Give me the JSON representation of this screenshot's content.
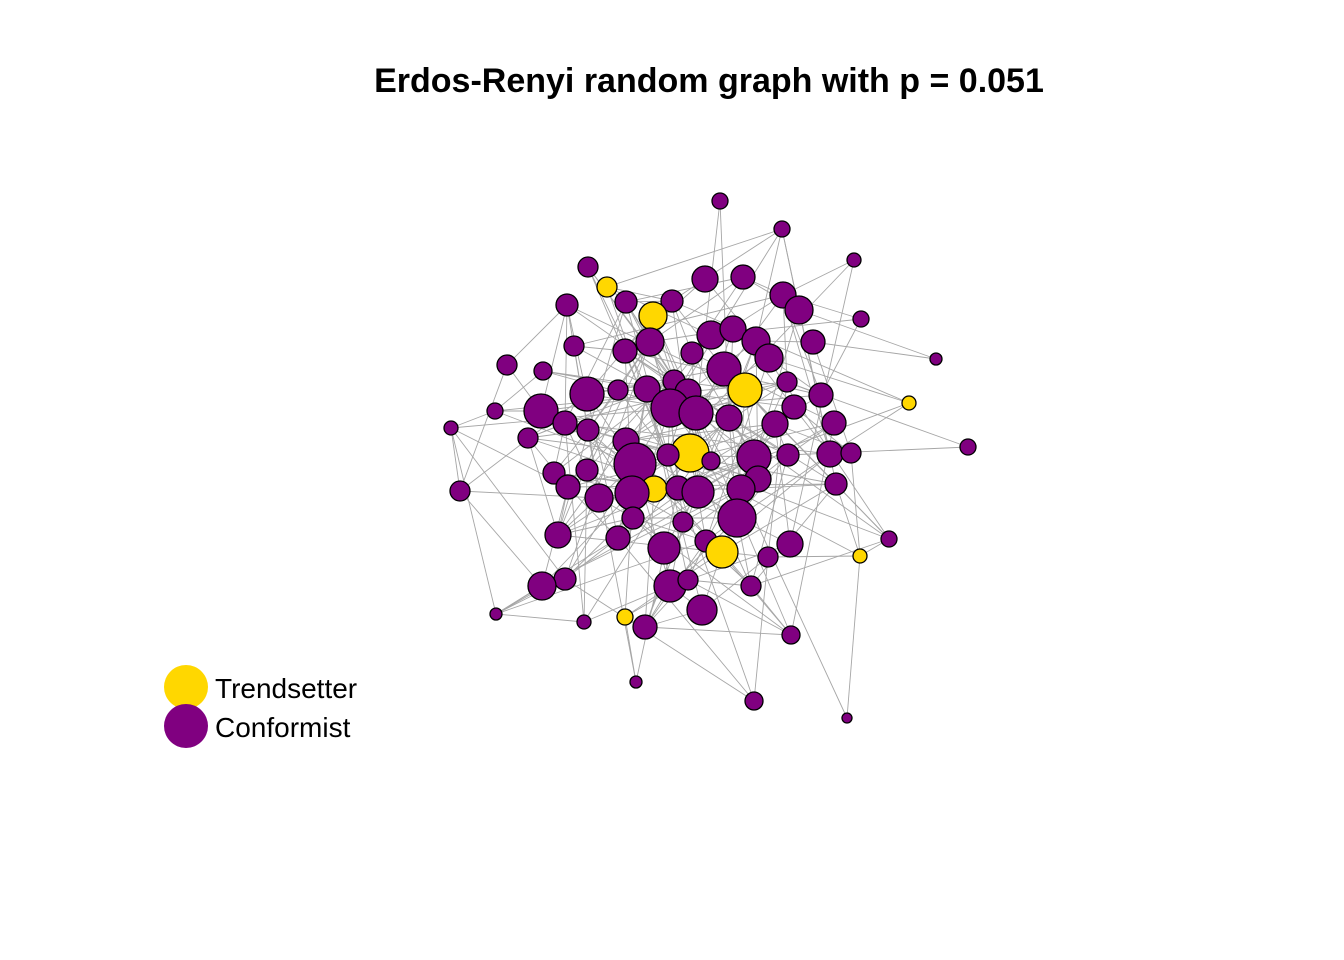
{
  "title": "Erdos-Renyi random graph with p = 0.051",
  "colors": {
    "trendsetter": "#FFD700",
    "conformist": "#800080",
    "edge": "#a6a6a6",
    "outline": "#000000"
  },
  "legend": [
    {
      "label": "Trendsetter",
      "color": "#FFD700"
    },
    {
      "label": "Conformist",
      "color": "#800080"
    }
  ]
}
